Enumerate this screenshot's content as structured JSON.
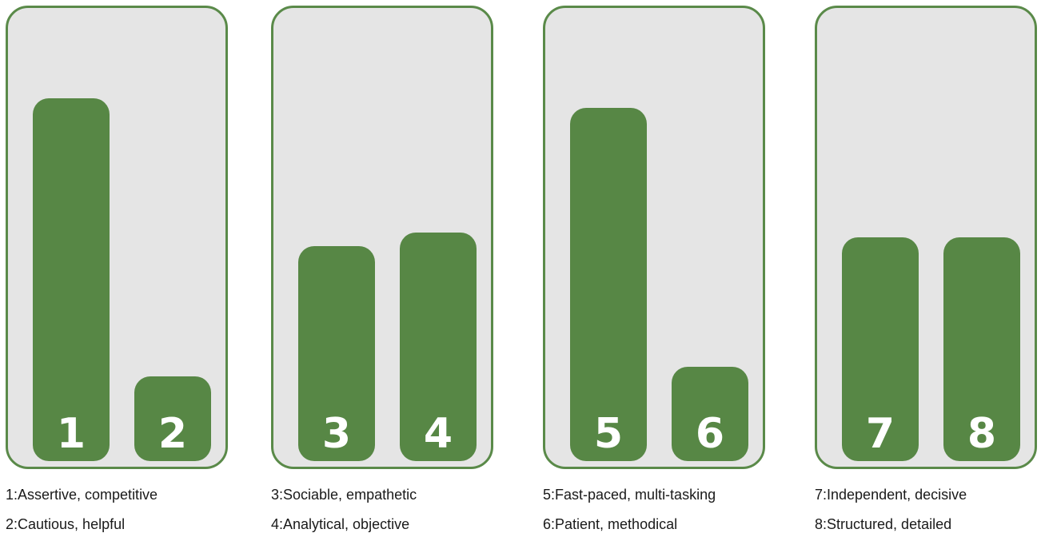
{
  "chart_data": {
    "type": "bar",
    "ylim": [
      0,
      100
    ],
    "grid": false,
    "bar_color": "#578745",
    "panel_fill": "#e5e5e5",
    "panel_border": "#5a8a49",
    "groups": [
      {
        "bars": [
          {
            "label": "1",
            "value": 81
          },
          {
            "label": "2",
            "value": 19
          }
        ],
        "legend": [
          "1:Assertive, competitive",
          "2:Cautious, helpful"
        ]
      },
      {
        "bars": [
          {
            "label": "3",
            "value": 48
          },
          {
            "label": "4",
            "value": 51
          }
        ],
        "legend": [
          "3:Sociable, empathetic",
          "4:Analytical, objective"
        ]
      },
      {
        "bars": [
          {
            "label": "5",
            "value": 79
          },
          {
            "label": "6",
            "value": 21
          }
        ],
        "legend": [
          "5:Fast-paced, multi-tasking",
          "6:Patient, methodical"
        ]
      },
      {
        "bars": [
          {
            "label": "7",
            "value": 50
          },
          {
            "label": "8",
            "value": 50
          }
        ],
        "legend": [
          "7:Independent, decisive",
          "8:Structured, detailed"
        ]
      }
    ]
  }
}
